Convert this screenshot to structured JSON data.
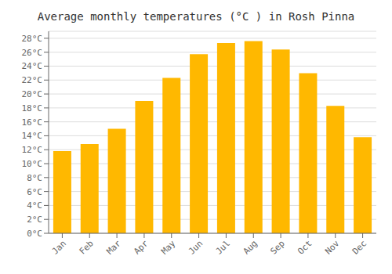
{
  "chart_data": {
    "type": "bar",
    "title": "Average monthly temperatures (°C ) in Rosh Pinna",
    "categories": [
      "Jan",
      "Feb",
      "Mar",
      "Apr",
      "May",
      "Jun",
      "Jul",
      "Aug",
      "Sep",
      "Oct",
      "Nov",
      "Dec"
    ],
    "values": [
      11.8,
      12.8,
      15.0,
      19.0,
      22.3,
      25.7,
      27.3,
      27.6,
      26.4,
      23.0,
      18.3,
      13.8
    ],
    "color": "#FFB800",
    "ylim": [
      0,
      29
    ],
    "yticks": [
      {
        "value": 0,
        "label": "0°C"
      },
      {
        "value": 2,
        "label": "2°C"
      },
      {
        "value": 4,
        "label": "4°C"
      },
      {
        "value": 6,
        "label": "6°C"
      },
      {
        "value": 8,
        "label": "8°C"
      },
      {
        "value": 10,
        "label": "10°C"
      },
      {
        "value": 12,
        "label": "12°C"
      },
      {
        "value": 14,
        "label": "14°C"
      },
      {
        "value": 16,
        "label": "16°C"
      },
      {
        "value": 18,
        "label": "18°C"
      },
      {
        "value": 20,
        "label": "20°C"
      },
      {
        "value": 22,
        "label": "22°C"
      },
      {
        "value": 24,
        "label": "24°C"
      },
      {
        "value": 26,
        "label": "26°C"
      },
      {
        "value": 28,
        "label": "28°C"
      }
    ],
    "grid": true
  }
}
